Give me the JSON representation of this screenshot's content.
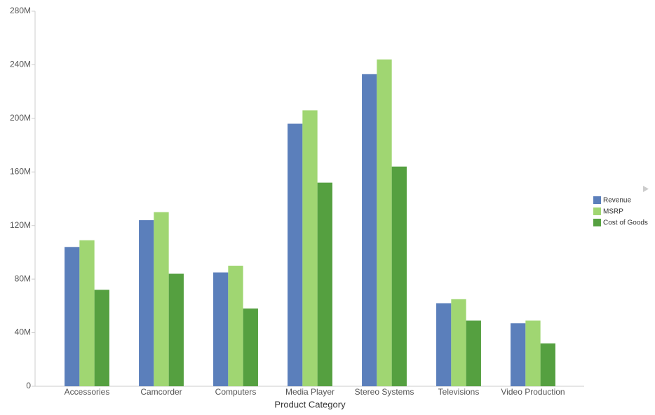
{
  "chart_data": {
    "type": "bar",
    "x_label": "Product Category",
    "categories": [
      "Accessories",
      "Camcorder",
      "Computers",
      "Media Player",
      "Stereo Systems",
      "Televisions",
      "Video Production"
    ],
    "series": [
      {
        "name": "Revenue",
        "color": "#5b7fbb",
        "values": [
          104,
          124,
          85,
          196,
          233,
          62,
          47
        ]
      },
      {
        "name": "MSRP",
        "color": "#a0d672",
        "values": [
          109,
          130,
          90,
          206,
          244,
          65,
          49
        ]
      },
      {
        "name": "Cost of Goods",
        "color": "#55a040",
        "values": [
          72,
          84,
          58,
          152,
          164,
          49,
          32
        ]
      }
    ],
    "ylim": [
      0,
      280
    ],
    "yticks": [
      0,
      {
        "value": 40,
        "label": "40M"
      },
      {
        "value": 80,
        "label": "80M"
      },
      {
        "value": 120,
        "label": "120M"
      },
      {
        "value": 160,
        "label": "160M"
      },
      {
        "value": 200,
        "label": "200M"
      },
      {
        "value": 240,
        "label": "240M"
      },
      {
        "value": 280,
        "label": "280M"
      }
    ],
    "legend": "right",
    "grid": false
  }
}
